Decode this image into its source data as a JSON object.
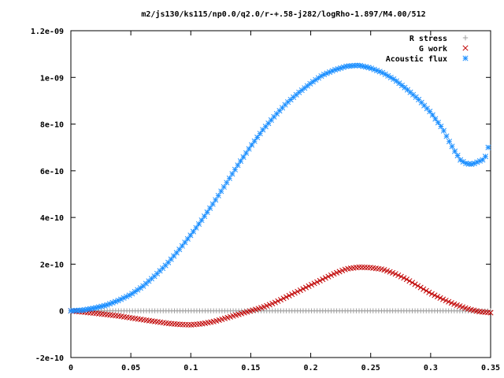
{
  "chart_data": {
    "type": "scatter",
    "title": "m2/js130/ks115/np0.0/q2.0/r-+.58-j282/logRho-1.897/M4.00/512",
    "xlabel": "",
    "ylabel": "",
    "xlim": [
      0,
      0.35
    ],
    "ylim": [
      -2e-10,
      1.2e-09
    ],
    "xticks": [
      0,
      0.05,
      0.1,
      0.15,
      0.2,
      0.25,
      0.3,
      0.35
    ],
    "xtick_labels": [
      "0",
      "0.05",
      "0.1",
      "0.15",
      "0.2",
      "0.25",
      "0.3",
      "0.35"
    ],
    "yticks": [
      -2e-10,
      0,
      2e-10,
      4e-10,
      6e-10,
      8e-10,
      1e-09,
      1.2e-09
    ],
    "ytick_labels": [
      "-2e-10",
      "0",
      "2e-10",
      "4e-10",
      "6e-10",
      "8e-10",
      "1e-09",
      "1.2e-09"
    ],
    "grid": false,
    "legend_position": "top-right",
    "series": [
      {
        "name": "R stress",
        "marker": "plus",
        "color": "#a0a0a0",
        "points": [
          [
            0,
            0
          ],
          [
            0.05,
            0
          ],
          [
            0.1,
            0
          ],
          [
            0.15,
            0
          ],
          [
            0.2,
            0
          ],
          [
            0.25,
            0
          ],
          [
            0.3,
            0
          ],
          [
            0.32,
            0
          ],
          [
            0.34,
            -1e-12
          ],
          [
            0.35,
            0
          ]
        ]
      },
      {
        "name": "G work",
        "marker": "x",
        "color": "#c00000",
        "points": [
          [
            0,
            0
          ],
          [
            0.02,
            -1e-11
          ],
          [
            0.04,
            -2.2e-11
          ],
          [
            0.06,
            -3.8e-11
          ],
          [
            0.08,
            -5.3e-11
          ],
          [
            0.09,
            -5.8e-11
          ],
          [
            0.1,
            -6e-11
          ],
          [
            0.11,
            -5.5e-11
          ],
          [
            0.12,
            -4.5e-11
          ],
          [
            0.13,
            -3e-11
          ],
          [
            0.14,
            -1.5e-11
          ],
          [
            0.15,
            0
          ],
          [
            0.16,
            1.5e-11
          ],
          [
            0.17,
            3.5e-11
          ],
          [
            0.18,
            6e-11
          ],
          [
            0.19,
            8.5e-11
          ],
          [
            0.2,
            1.1e-10
          ],
          [
            0.21,
            1.35e-10
          ],
          [
            0.22,
            1.6e-10
          ],
          [
            0.23,
            1.8e-10
          ],
          [
            0.24,
            1.87e-10
          ],
          [
            0.25,
            1.85e-10
          ],
          [
            0.26,
            1.78e-10
          ],
          [
            0.27,
            1.6e-10
          ],
          [
            0.28,
            1.35e-10
          ],
          [
            0.29,
            1.05e-10
          ],
          [
            0.3,
            7.5e-11
          ],
          [
            0.31,
            5e-11
          ],
          [
            0.32,
            2.8e-11
          ],
          [
            0.33,
            1e-11
          ],
          [
            0.34,
            -3e-12
          ],
          [
            0.35,
            -8e-12
          ]
        ]
      },
      {
        "name": "Acoustic flux",
        "marker": "star",
        "color": "#1e90ff",
        "points": [
          [
            0,
            0
          ],
          [
            0.01,
            3e-12
          ],
          [
            0.02,
            1.2e-11
          ],
          [
            0.03,
            2.5e-11
          ],
          [
            0.04,
            4.5e-11
          ],
          [
            0.05,
            7e-11
          ],
          [
            0.06,
            1.05e-10
          ],
          [
            0.07,
            1.5e-10
          ],
          [
            0.08,
            2e-10
          ],
          [
            0.09,
            2.6e-10
          ],
          [
            0.1,
            3.25e-10
          ],
          [
            0.11,
            3.95e-10
          ],
          [
            0.12,
            4.7e-10
          ],
          [
            0.13,
            5.5e-10
          ],
          [
            0.14,
            6.3e-10
          ],
          [
            0.15,
            7.05e-10
          ],
          [
            0.16,
            7.75e-10
          ],
          [
            0.17,
            8.35e-10
          ],
          [
            0.18,
            8.9e-10
          ],
          [
            0.19,
            9.35e-10
          ],
          [
            0.2,
            9.75e-10
          ],
          [
            0.21,
            1.01e-09
          ],
          [
            0.22,
            1.032e-09
          ],
          [
            0.23,
            1.048e-09
          ],
          [
            0.24,
            1.052e-09
          ],
          [
            0.25,
            1.04e-09
          ],
          [
            0.26,
            1.02e-09
          ],
          [
            0.27,
            9.9e-10
          ],
          [
            0.28,
            9.5e-10
          ],
          [
            0.29,
            9.05e-10
          ],
          [
            0.3,
            8.5e-10
          ],
          [
            0.31,
            7.8e-10
          ],
          [
            0.315,
            7.3e-10
          ],
          [
            0.32,
            6.85e-10
          ],
          [
            0.325,
            6.45e-10
          ],
          [
            0.33,
            6.3e-10
          ],
          [
            0.335,
            6.28e-10
          ],
          [
            0.34,
            6.4e-10
          ],
          [
            0.345,
            6.5e-10
          ],
          [
            0.348,
            7e-10
          ]
        ]
      }
    ]
  }
}
